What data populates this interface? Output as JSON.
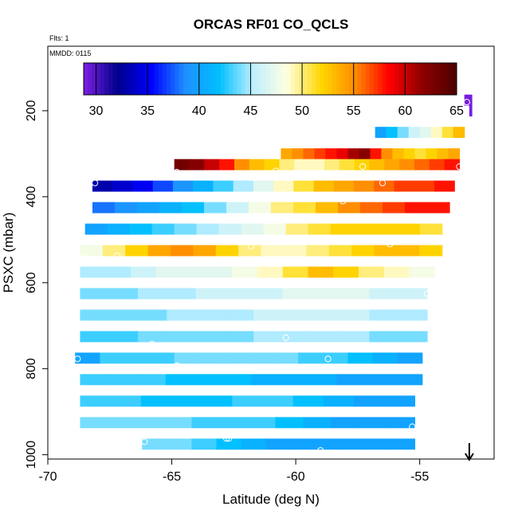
{
  "chart_data": {
    "type": "heatmap",
    "title": "ORCAS RF01 CO_QCLS",
    "annotations": {
      "flights": "Flts: 1",
      "mmdd": "MMDD: 0115"
    },
    "xlabel": "Latitude (deg N)",
    "ylabel": "PSXC (mbar)",
    "xlim": [
      -70,
      -52
    ],
    "ylim": [
      1010,
      50
    ],
    "x_ticks": [
      -70,
      -65,
      -60,
      -55
    ],
    "x_tick_labels": [
      "-70",
      "-65",
      "-60",
      "-55"
    ],
    "y_ticks": [
      200,
      400,
      600,
      800,
      1000
    ],
    "y_tick_labels": [
      "200",
      "400",
      "600",
      "800",
      "1000"
    ],
    "colorbar": {
      "min": 28.8,
      "max": 65,
      "ticks": [
        30,
        35,
        40,
        45,
        50,
        55,
        60,
        65
      ],
      "tick_labels": [
        "30",
        "35",
        "40",
        "45",
        "50",
        "55",
        "60",
        "65"
      ],
      "colors": [
        "#7e1fe4",
        "#00008b",
        "#0000ff",
        "#1e90ff",
        "#00bfff",
        "#bfefff",
        "#ffffe0",
        "#ffd700",
        "#ff8c00",
        "#ff0000",
        "#8b0000",
        "#4d0000"
      ]
    },
    "bins_dp": 25,
    "rows": [
      {
        "p": 175,
        "x0": -53.2,
        "x1": -52.9,
        "c": [
          29
        ]
      },
      {
        "p": 200,
        "x0": -53.0,
        "x1": -52.9,
        "c": [
          29
        ]
      },
      {
        "p": 250,
        "x0": -56.8,
        "x1": -53.2,
        "c": [
          40,
          42,
          44,
          46,
          47,
          49,
          51,
          53
        ]
      },
      {
        "p": 300,
        "x0": -60.6,
        "x1": -53.4,
        "c": [
          54,
          55,
          56,
          57,
          58,
          59,
          61,
          62,
          58,
          55,
          53,
          52,
          51,
          52,
          53,
          54
        ]
      },
      {
        "p": 325,
        "x0": -64.9,
        "x1": -53.4,
        "c": [
          63,
          62,
          60,
          58,
          55,
          53,
          52,
          50,
          49,
          49,
          50,
          51,
          52,
          53,
          54,
          55,
          56,
          57,
          58
        ]
      },
      {
        "p": 375,
        "x0": -68.2,
        "x1": -53.6,
        "c": [
          33,
          34,
          35,
          37,
          39,
          41,
          43,
          45,
          47,
          49,
          51,
          53,
          54,
          55,
          56,
          57,
          57,
          58
        ]
      },
      {
        "p": 425,
        "x0": -68.2,
        "x1": -53.8,
        "c": [
          38,
          39,
          40,
          41,
          42,
          44,
          46,
          48,
          50,
          51,
          53,
          55,
          56,
          57,
          58,
          58
        ]
      },
      {
        "p": 475,
        "x0": -68.5,
        "x1": -54.1,
        "c": [
          40,
          41,
          42,
          43,
          44,
          45,
          46,
          47,
          48,
          50,
          51,
          52,
          52,
          52,
          52,
          51
        ]
      },
      {
        "p": 525,
        "x0": -68.7,
        "x1": -54.1,
        "c": [
          48,
          50,
          52,
          54,
          55,
          54,
          52,
          50,
          49,
          49,
          50,
          51,
          52,
          53,
          53,
          52
        ]
      },
      {
        "p": 575,
        "x0": -68.7,
        "x1": -54.4,
        "c": [
          45,
          45,
          46,
          47,
          47,
          47,
          48,
          49,
          51,
          53,
          52,
          50,
          49,
          48
        ]
      },
      {
        "p": 625,
        "x0": -68.7,
        "x1": -54.7,
        "c": [
          44,
          44,
          45,
          45,
          46,
          46,
          46,
          47,
          47,
          47,
          46,
          46
        ]
      },
      {
        "p": 675,
        "x0": -68.7,
        "x1": -54.7,
        "c": [
          44,
          44,
          44,
          45,
          45,
          45,
          46,
          46,
          46,
          46,
          45,
          45
        ]
      },
      {
        "p": 725,
        "x0": -68.7,
        "x1": -54.7,
        "c": [
          43,
          43,
          44,
          44,
          44,
          44,
          45,
          45,
          45,
          45,
          44,
          44
        ]
      },
      {
        "p": 775,
        "x0": -68.9,
        "x1": -54.9,
        "c": [
          40,
          43,
          43,
          43,
          44,
          44,
          44,
          44,
          44,
          43,
          43,
          42,
          41,
          40
        ]
      },
      {
        "p": 825,
        "x0": -68.7,
        "x1": -54.9,
        "c": [
          43,
          43,
          43,
          42,
          42,
          42,
          41,
          41,
          41,
          40,
          40,
          40
        ]
      },
      {
        "p": 875,
        "x0": -68.7,
        "x1": -55.2,
        "c": [
          43,
          43,
          42,
          42,
          42,
          43,
          43,
          42,
          41,
          40,
          40
        ]
      },
      {
        "p": 925,
        "x0": -68.7,
        "x1": -55.2,
        "c": [
          44,
          44,
          44,
          44,
          43,
          43,
          43,
          42,
          41,
          40,
          40,
          40
        ]
      },
      {
        "p": 975,
        "x0": -66.2,
        "x1": -55.2,
        "c": [
          44,
          44,
          43,
          42,
          41,
          40,
          40,
          40,
          40,
          40,
          40
        ]
      }
    ],
    "points": [
      {
        "x": -53.1,
        "p": 180
      },
      {
        "x": -53.3,
        "p": 220
      },
      {
        "x": -53.4,
        "p": 330
      },
      {
        "x": -64.8,
        "p": 343
      },
      {
        "x": -57.3,
        "p": 330
      },
      {
        "x": -60.8,
        "p": 340
      },
      {
        "x": -68.1,
        "p": 368
      },
      {
        "x": -56.5,
        "p": 368
      },
      {
        "x": -58.1,
        "p": 410
      },
      {
        "x": -54.2,
        "p": 450
      },
      {
        "x": -61.8,
        "p": 515
      },
      {
        "x": -67.2,
        "p": 537
      },
      {
        "x": -68.5,
        "p": 540
      },
      {
        "x": -68.5,
        "p": 555
      },
      {
        "x": -63.6,
        "p": 553
      },
      {
        "x": -56.2,
        "p": 510
      },
      {
        "x": -54.7,
        "p": 625
      },
      {
        "x": -65.8,
        "p": 743
      },
      {
        "x": -62.3,
        "p": 752
      },
      {
        "x": -60.4,
        "p": 728
      },
      {
        "x": -58.7,
        "p": 777
      },
      {
        "x": -68.8,
        "p": 777
      },
      {
        "x": -64.8,
        "p": 793
      },
      {
        "x": -63.2,
        "p": 797
      },
      {
        "x": -54.4,
        "p": 838
      },
      {
        "x": -55.3,
        "p": 935
      },
      {
        "x": -68.6,
        "p": 960
      },
      {
        "x": -66.1,
        "p": 970
      },
      {
        "x": -62.8,
        "p": 962
      },
      {
        "x": -62.7,
        "p": 962
      },
      {
        "x": -59.0,
        "p": 990
      },
      {
        "x": -55.1,
        "p": 995
      }
    ],
    "arrow": {
      "x": -53.0,
      "direction": "down",
      "label": ""
    }
  }
}
